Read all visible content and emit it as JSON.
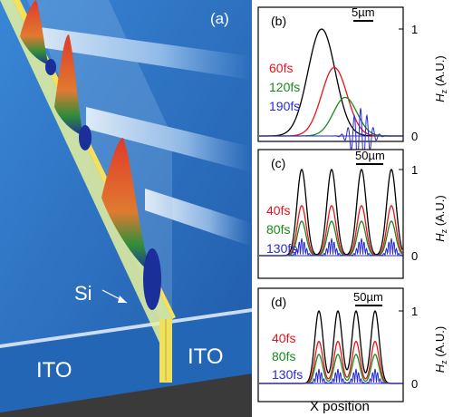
{
  "panel_a": {
    "label": "(a)",
    "material_si": "Si",
    "material_ito_left": "ITO",
    "material_ito_right": "ITO"
  },
  "panel_b": {
    "label": "(b)",
    "scale_bar": "5µm",
    "ytick_top": "1",
    "ytick_bottom": "0",
    "ylabel_main": "H",
    "ylabel_sub": "z",
    "ylabel_unit": " (A.U.)",
    "legend": [
      {
        "text": "60fs",
        "color": "#e8141b"
      },
      {
        "text": "120fs",
        "color": "#178a1e"
      },
      {
        "text": "190fs",
        "color": "#2a2ad8"
      }
    ]
  },
  "panel_c": {
    "label": "(c)",
    "scale_bar": "50µm",
    "ytick_top": "1",
    "ytick_bottom": "0",
    "ylabel_main": "H",
    "ylabel_sub": "z",
    "ylabel_unit": " (A.U.)",
    "legend": [
      {
        "text": "40fs",
        "color": "#e8141b"
      },
      {
        "text": "80fs",
        "color": "#178a1e"
      },
      {
        "text": "130fs",
        "color": "#2a2ad8"
      }
    ]
  },
  "panel_d": {
    "label": "(d)",
    "scale_bar": "50µm",
    "ytick_top": "1",
    "ytick_bottom": "0",
    "ylabel_main": "H",
    "ylabel_sub": "z",
    "ylabel_unit": " (A.U.)",
    "legend": [
      {
        "text": "40fs",
        "color": "#e8141b"
      },
      {
        "text": "80fs",
        "color": "#178a1e"
      },
      {
        "text": "130fs",
        "color": "#2a2ad8"
      }
    ]
  },
  "xlabel": "X position",
  "colors": {
    "black_curve": "#000000",
    "red_curve": "#e8141b",
    "green_curve": "#178a1e",
    "blue_curve": "#2a2ad8",
    "background_blue": "#2f6fbf",
    "si_yellow": "#f1e16a",
    "ito_slab": "#1f62b0"
  }
}
